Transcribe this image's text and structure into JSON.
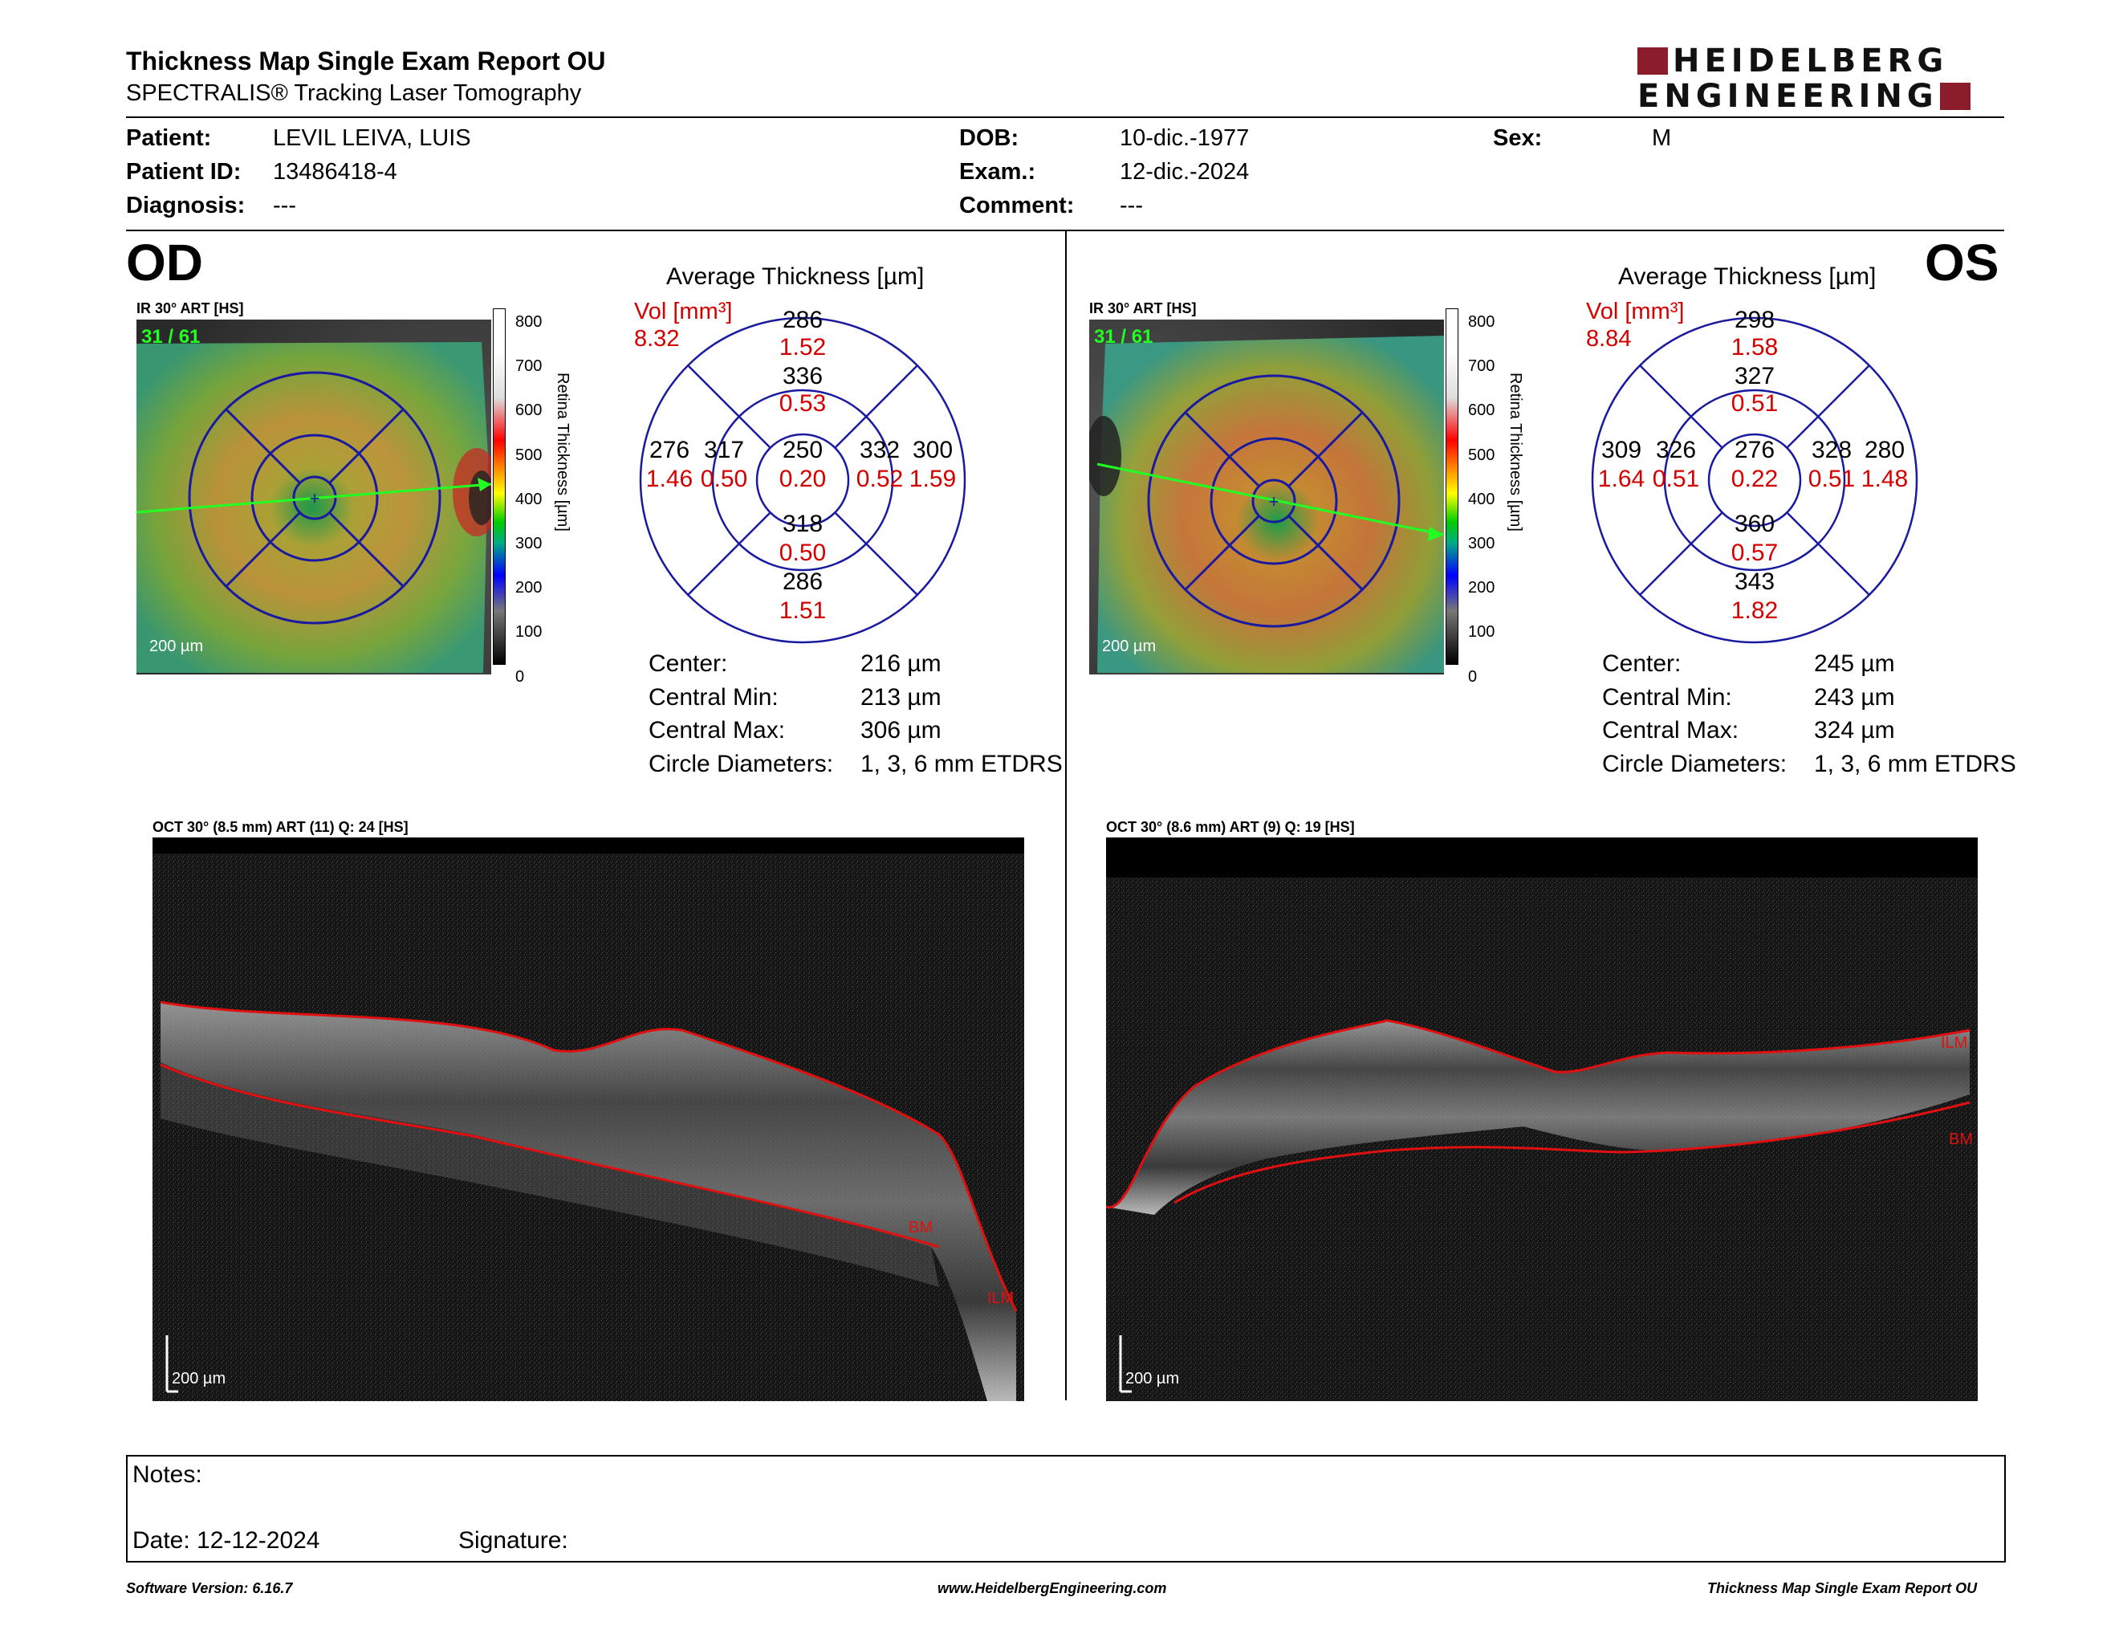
{
  "header": {
    "title": "Thickness Map Single Exam Report OU",
    "subtitle": "SPECTRALIS® Tracking Laser Tomography",
    "logo_line1": "HEIDELBERG",
    "logo_line2": "ENGINEERING"
  },
  "patient": {
    "patient_label": "Patient:",
    "patient_value": "LEVIL LEIVA, LUIS",
    "id_label": "Patient ID:",
    "id_value": "13486418-4",
    "diagnosis_label": "Diagnosis:",
    "diagnosis_value": "---",
    "dob_label": "DOB:",
    "dob_value": "10-dic.-1977",
    "exam_label": "Exam.:",
    "exam_value": "12-dic.-2024",
    "comment_label": "Comment:",
    "comment_value": "---",
    "sex_label": "Sex:",
    "sex_value": "M"
  },
  "colorbar": {
    "ticks": [
      "800",
      "700",
      "600",
      "500",
      "400",
      "300",
      "200",
      "100",
      "0"
    ],
    "label": "Retina Thickness [µm]"
  },
  "od": {
    "eye": "OD",
    "map_label": "IR 30° ART [HS]",
    "frame": "31 / 61",
    "scale": "200 µm",
    "avg_title": "Average Thickness [µm]",
    "vol_label": "Vol [mm³]",
    "vol_value": "8.32",
    "etdrs": {
      "sup_outer": "286",
      "sup_outer_vol": "1.52",
      "sup_inner": "336",
      "sup_inner_vol": "0.53",
      "temp_outer": "276",
      "temp_outer_vol": "1.46",
      "temp_inner": "317",
      "temp_inner_vol": "0.50",
      "center": "250",
      "center_vol": "0.20",
      "nas_inner": "332",
      "nas_inner_vol": "0.52",
      "nas_outer": "300",
      "nas_outer_vol": "1.59",
      "inf_inner": "318",
      "inf_inner_vol": "0.50",
      "inf_outer": "286",
      "inf_outer_vol": "1.51"
    },
    "stats": {
      "center_label": "Center:",
      "center_value": "216 µm",
      "min_label": "Central Min:",
      "min_value": "213 µm",
      "max_label": "Central Max:",
      "max_value": "306 µm",
      "diam_label": "Circle Diameters:",
      "diam_value": "1, 3, 6 mm ETDRS"
    },
    "scan_label": "OCT 30° (8.5 mm) ART (11) Q: 24 [HS]",
    "scan_scale": "200 µm",
    "ilm": "ILM",
    "bm": "BM"
  },
  "os": {
    "eye": "OS",
    "map_label": "IR 30° ART [HS]",
    "frame": "31 / 61",
    "scale": "200 µm",
    "avg_title": "Average Thickness [µm]",
    "vol_label": "Vol [mm³]",
    "vol_value": "8.84",
    "etdrs": {
      "sup_outer": "298",
      "sup_outer_vol": "1.58",
      "sup_inner": "327",
      "sup_inner_vol": "0.51",
      "temp_outer": "309",
      "temp_outer_vol": "1.64",
      "temp_inner": "326",
      "temp_inner_vol": "0.51",
      "center": "276",
      "center_vol": "0.22",
      "nas_inner": "328",
      "nas_inner_vol": "0.51",
      "nas_outer": "280",
      "nas_outer_vol": "1.48",
      "inf_inner": "360",
      "inf_inner_vol": "0.57",
      "inf_outer": "343",
      "inf_outer_vol": "1.82"
    },
    "stats": {
      "center_label": "Center:",
      "center_value": "245 µm",
      "min_label": "Central Min:",
      "min_value": "243 µm",
      "max_label": "Central Max:",
      "max_value": "324 µm",
      "diam_label": "Circle Diameters:",
      "diam_value": "1, 3, 6 mm ETDRS"
    },
    "scan_label": "OCT 30° (8.6 mm) ART (9) Q: 19 [HS]",
    "scan_scale": "200 µm",
    "ilm": "ILM",
    "bm": "BM"
  },
  "notes": {
    "notes_label": "Notes:",
    "date_label": "Date: 12-12-2024",
    "signature_label": "Signature:"
  },
  "footer": {
    "software": "Software Version: 6.16.7",
    "website": "www.HeidelbergEngineering.com",
    "report": "Thickness Map Single Exam Report OU"
  },
  "colors": {
    "volume_red": "#d40000",
    "grid_blue": "#1a1aa0",
    "scan_line_green": "#22ff22",
    "segmentation_red": "#e01010",
    "logo_red": "#8a1c2b"
  }
}
